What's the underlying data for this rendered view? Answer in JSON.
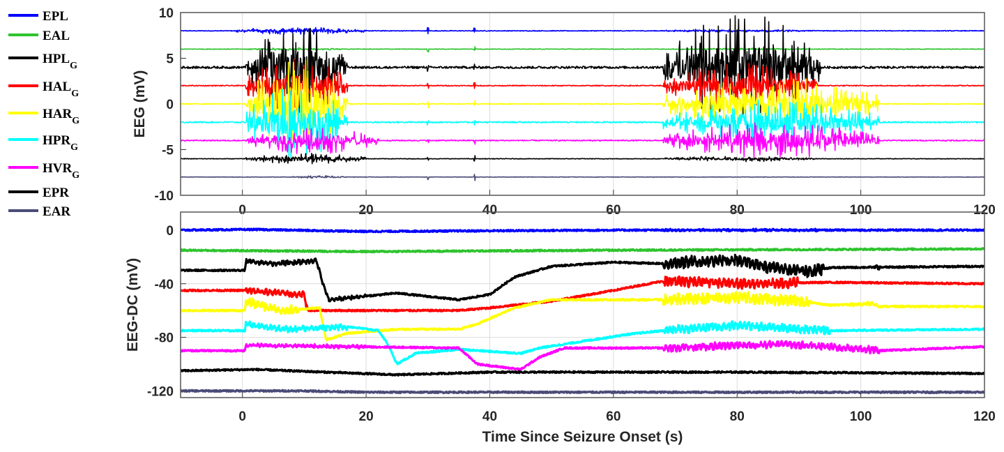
{
  "chart_data": [
    {
      "type": "line",
      "title": "",
      "xlabel": "",
      "ylabel": "EEG (mV)",
      "xlim": [
        -10,
        120
      ],
      "ylim": [
        -10,
        10
      ],
      "xticks": [
        0,
        20,
        40,
        60,
        80,
        100,
        120
      ],
      "yticks": [
        10,
        5,
        0,
        -5,
        -10
      ],
      "grid": "vertical",
      "series": [
        {
          "name": "EPL",
          "color": "#0000ff",
          "offset": 8,
          "noise": 0.08,
          "bursts": [
            [
              -1,
              20,
              0.4
            ],
            [
              68,
              93,
              0.15
            ]
          ]
        },
        {
          "name": "EAL",
          "color": "#2ec42e",
          "offset": 6,
          "noise": 0.06,
          "bursts": [
            [
              0,
              17,
              0.15
            ],
            [
              68,
              93,
              0.1
            ]
          ]
        },
        {
          "name": "HPL_G",
          "color": "#000000",
          "offset": 4,
          "noise": 0.25,
          "bursts": [
            [
              0.5,
              17,
              5
            ],
            [
              68,
              93.5,
              6
            ]
          ]
        },
        {
          "name": "HAL_G",
          "color": "#ff0000",
          "offset": 2,
          "noise": 0.1,
          "bursts": [
            [
              0.5,
              17,
              3
            ],
            [
              68,
              93,
              2.5
            ]
          ]
        },
        {
          "name": "HAR_G",
          "color": "#ffff00",
          "offset": 0,
          "noise": 0.1,
          "bursts": [
            [
              0.5,
              17,
              5
            ],
            [
              68,
              103,
              3
            ]
          ]
        },
        {
          "name": "HPR_G",
          "color": "#00ffff",
          "offset": -2,
          "noise": 0.15,
          "bursts": [
            [
              0.5,
              17,
              4
            ],
            [
              68,
              103,
              2.5
            ]
          ]
        },
        {
          "name": "HVR_G",
          "color": "#ff00ff",
          "offset": -4,
          "noise": 0.12,
          "bursts": [
            [
              0.5,
              22,
              1.5
            ],
            [
              68,
              103,
              2
            ]
          ]
        },
        {
          "name": "EPR",
          "color": "#000000",
          "offset": -6,
          "noise": 0.06,
          "bursts": [
            [
              0.5,
              20,
              0.6
            ],
            [
              68,
              93,
              0.3
            ]
          ]
        },
        {
          "name": "EAR",
          "color": "#4b4b78",
          "offset": -8,
          "noise": 0.05,
          "bursts": [
            [
              8,
              17,
              0.15
            ]
          ]
        }
      ]
    },
    {
      "type": "line",
      "title": "",
      "xlabel": "Time Since Seizure Onset (s)",
      "ylabel": "EEG-DC (mV)",
      "xlim": [
        -10,
        120
      ],
      "ylim": [
        -125,
        13.5
      ],
      "xticks": [
        0,
        20,
        40,
        60,
        80,
        100,
        120
      ],
      "yticks": [
        0,
        -40,
        -80,
        -120
      ],
      "grid": "both",
      "series": [
        {
          "name": "EPL",
          "color": "#0000ff",
          "points": [
            [
              -10,
              0
            ],
            [
              2,
              0.5
            ],
            [
              20,
              -1
            ],
            [
              60,
              0
            ],
            [
              120,
              0
            ]
          ],
          "noisy": [
            [
              68,
              93,
              0.8
            ]
          ]
        },
        {
          "name": "EAL",
          "color": "#2ec42e",
          "points": [
            [
              -10,
              -15
            ],
            [
              20,
              -16
            ],
            [
              60,
              -15
            ],
            [
              120,
              -14
            ]
          ],
          "noisy": []
        },
        {
          "name": "HPL_G",
          "color": "#000000",
          "points": [
            [
              -10,
              -30
            ],
            [
              0.4,
              -30
            ],
            [
              0.6,
              -23
            ],
            [
              5,
              -25
            ],
            [
              12,
              -23
            ],
            [
              13,
              -40
            ],
            [
              14,
              -52
            ],
            [
              25,
              -47
            ],
            [
              35,
              -52
            ],
            [
              40,
              -48
            ],
            [
              44,
              -35
            ],
            [
              50,
              -27
            ],
            [
              60,
              -24
            ],
            [
              68,
              -25
            ],
            [
              80,
              -22
            ],
            [
              85,
              -28
            ],
            [
              92,
              -31
            ],
            [
              95,
              -28
            ],
            [
              120,
              -27
            ]
          ],
          "noisy": [
            [
              0.5,
              13,
              3
            ],
            [
              13,
              20,
              2
            ],
            [
              68,
              94,
              8
            ],
            [
              102,
              103,
              3
            ]
          ]
        },
        {
          "name": "HAL_G",
          "color": "#ff0000",
          "points": [
            [
              -10,
              -45
            ],
            [
              0.5,
              -45
            ],
            [
              10,
              -48
            ],
            [
              10.5,
              -60
            ],
            [
              35,
              -60
            ],
            [
              40,
              -58
            ],
            [
              50,
              -53
            ],
            [
              60,
              -45
            ],
            [
              68,
              -38
            ],
            [
              80,
              -40
            ],
            [
              95,
              -39
            ],
            [
              120,
              -40
            ]
          ],
          "noisy": [
            [
              0.5,
              10.5,
              4
            ],
            [
              68,
              90,
              7
            ]
          ]
        },
        {
          "name": "HAR_G",
          "color": "#ffff00",
          "points": [
            [
              -10,
              -60
            ],
            [
              0.4,
              -60
            ],
            [
              0.6,
              -53
            ],
            [
              6,
              -60
            ],
            [
              12.5,
              -58
            ],
            [
              13.5,
              -82
            ],
            [
              17,
              -77
            ],
            [
              25,
              -74
            ],
            [
              35,
              -74
            ],
            [
              38,
              -70
            ],
            [
              44,
              -58
            ],
            [
              50,
              -52
            ],
            [
              68,
              -52
            ],
            [
              80,
              -50
            ],
            [
              90,
              -53
            ],
            [
              95,
              -56
            ],
            [
              102,
              -55
            ],
            [
              103,
              -57
            ],
            [
              120,
              -57
            ]
          ],
          "noisy": [
            [
              0.5,
              9,
              6
            ],
            [
              68,
              92,
              8
            ],
            [
              98,
              103,
              2
            ]
          ]
        },
        {
          "name": "HPR_G",
          "color": "#00ffff",
          "points": [
            [
              -10,
              -75
            ],
            [
              0.4,
              -75
            ],
            [
              0.6,
              -70
            ],
            [
              7,
              -74
            ],
            [
              17,
              -72
            ],
            [
              22,
              -75
            ],
            [
              23.5,
              -85
            ],
            [
              25,
              -100
            ],
            [
              28,
              -92
            ],
            [
              35,
              -89
            ],
            [
              45,
              -92
            ],
            [
              48,
              -88
            ],
            [
              55,
              -83
            ],
            [
              62,
              -78
            ],
            [
              68,
              -75
            ],
            [
              80,
              -71
            ],
            [
              95,
              -75
            ],
            [
              120,
              -74
            ]
          ],
          "noisy": [
            [
              0.5,
              17,
              4
            ],
            [
              68,
              95,
              6
            ]
          ]
        },
        {
          "name": "HVR_G",
          "color": "#ff00ff",
          "points": [
            [
              -10,
              -90
            ],
            [
              0.4,
              -90
            ],
            [
              0.6,
              -86
            ],
            [
              35,
              -88
            ],
            [
              38,
              -100
            ],
            [
              45,
              -104
            ],
            [
              48,
              -95
            ],
            [
              52,
              -88
            ],
            [
              68,
              -88
            ],
            [
              88,
              -85
            ],
            [
              100,
              -89
            ],
            [
              103,
              -90
            ],
            [
              120,
              -87
            ]
          ],
          "noisy": [
            [
              0.5,
              20,
              2
            ],
            [
              68,
              103,
              5
            ]
          ]
        },
        {
          "name": "EPR",
          "color": "#000000",
          "points": [
            [
              -10,
              -105
            ],
            [
              2,
              -104
            ],
            [
              25,
              -108
            ],
            [
              40,
              -106
            ],
            [
              80,
              -106
            ],
            [
              120,
              -107
            ]
          ],
          "noisy": []
        },
        {
          "name": "EAR",
          "color": "#4b4b78",
          "points": [
            [
              -10,
              -120
            ],
            [
              10,
              -120
            ],
            [
              20,
              -121
            ],
            [
              60,
              -121
            ],
            [
              120,
              -121
            ]
          ],
          "noisy": []
        }
      ]
    }
  ],
  "legend": {
    "placement": "left",
    "items": [
      {
        "name": "EPL",
        "sub": "",
        "color": "#0000ff"
      },
      {
        "name": "EAL",
        "sub": "",
        "color": "#2ec42e"
      },
      {
        "name": "HPL",
        "sub": "G",
        "color": "#000000"
      },
      {
        "name": "HAL",
        "sub": "G",
        "color": "#ff0000"
      },
      {
        "name": "HAR",
        "sub": "G",
        "color": "#ffff00"
      },
      {
        "name": "HPR",
        "sub": "G",
        "color": "#00ffff"
      },
      {
        "name": "HVR",
        "sub": "G",
        "color": "#ff00ff"
      },
      {
        "name": "EPR",
        "sub": "",
        "color": "#000000"
      },
      {
        "name": "EAR",
        "sub": "",
        "color": "#4b4b78"
      }
    ]
  }
}
